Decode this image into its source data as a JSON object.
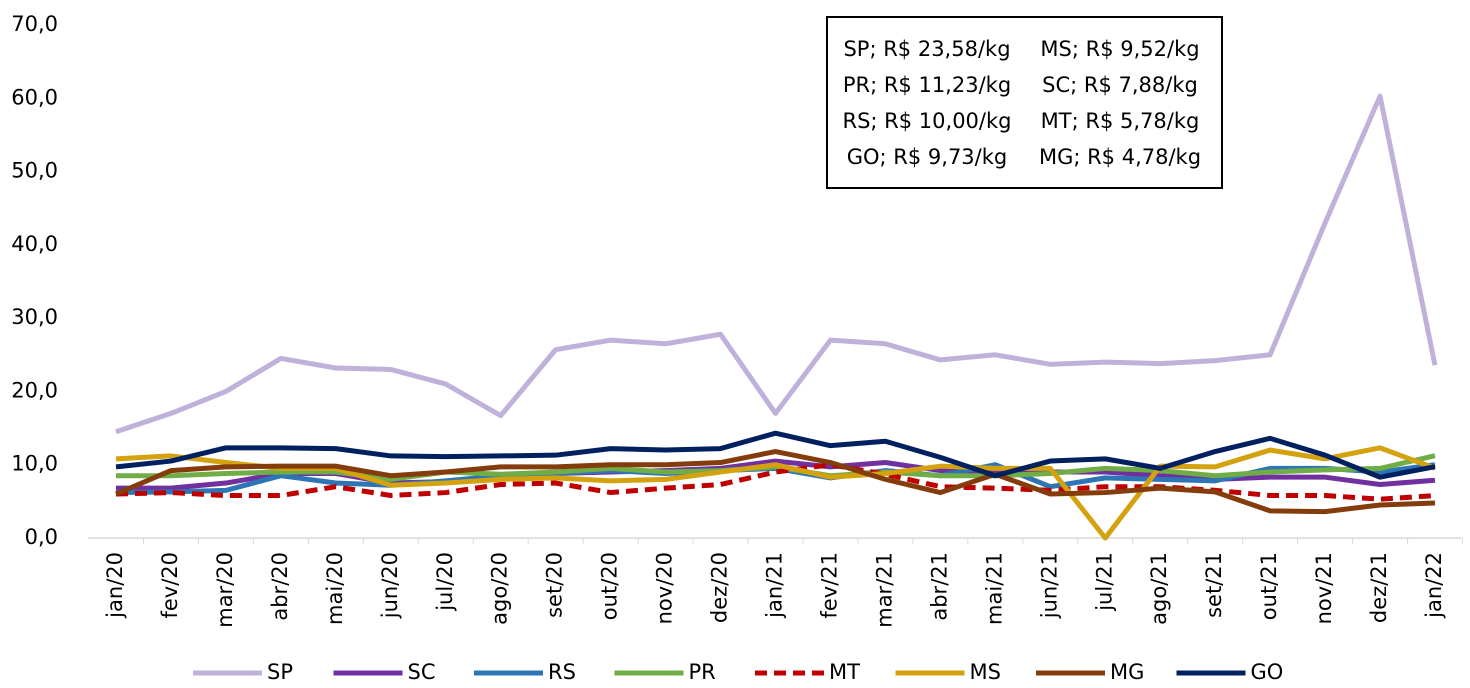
{
  "chart_data": {
    "type": "line",
    "categories": [
      "jan/20",
      "fev/20",
      "mar/20",
      "abr/20",
      "mai/20",
      "jun/20",
      "jul/20",
      "ago/20",
      "set/20",
      "out/20",
      "nov/20",
      "dez/20",
      "jan/21",
      "fev/21",
      "mar/21",
      "abr/21",
      "mai/21",
      "jun/21",
      "jul/21",
      "ago/21",
      "set/21",
      "out/21",
      "nov/21",
      "dez/21",
      "jan/22"
    ],
    "series": [
      {
        "name": "SP",
        "color": "#bfb1d9",
        "values": [
          14.5,
          17,
          20,
          24.5,
          23.2,
          23,
          21,
          16.7,
          25.7,
          27,
          26.5,
          27.8,
          17,
          27,
          26.5,
          24.3,
          25,
          23.7,
          24,
          23.8,
          24.2,
          25,
          43,
          60.3,
          23.58
        ]
      },
      {
        "name": "SC",
        "color": "#7030a0",
        "values": [
          6.8,
          6.8,
          7.5,
          8.8,
          8.8,
          7.5,
          7.7,
          8.5,
          8.8,
          9,
          9.2,
          9.5,
          10.5,
          9.7,
          10.3,
          9.2,
          9,
          9,
          9,
          8.5,
          8,
          8.3,
          8.3,
          7.3,
          7.88
        ]
      },
      {
        "name": "RS",
        "color": "#2e75b6",
        "values": [
          6.2,
          6.3,
          6.5,
          8.5,
          7.5,
          7.2,
          7.8,
          8.5,
          8.8,
          9.2,
          8.8,
          9.2,
          9.5,
          8.2,
          9.2,
          8.5,
          10,
          7,
          8.2,
          8,
          7.8,
          9.5,
          9.5,
          9,
          10
        ]
      },
      {
        "name": "PR",
        "color": "#70ad47",
        "values": [
          8.5,
          8.5,
          8.8,
          9,
          9,
          8,
          9,
          8.7,
          9,
          9.5,
          9,
          9.2,
          9.7,
          8.5,
          9,
          8.5,
          8.5,
          8.8,
          9.5,
          9.2,
          8.5,
          9,
          9.3,
          9.5,
          11.23
        ]
      },
      {
        "name": "MT",
        "color": "#c00000",
        "dashed": true,
        "values": [
          6,
          6.2,
          5.8,
          5.8,
          7,
          5.8,
          6.2,
          7.3,
          7.5,
          6.2,
          6.8,
          7.3,
          9,
          10,
          8.7,
          7,
          6.8,
          6.5,
          7,
          7,
          6.5,
          5.8,
          5.8,
          5.3,
          5.78
        ]
      },
      {
        "name": "MS",
        "color": "#d4a20f",
        "values": [
          10.8,
          11.2,
          10.3,
          9.5,
          9.5,
          7.2,
          7.5,
          8,
          8.2,
          7.8,
          8,
          9,
          10,
          8.3,
          8.8,
          9.8,
          9.5,
          9.5,
          0,
          9.8,
          9.7,
          12,
          10.8,
          12.3,
          9.52
        ]
      },
      {
        "name": "MG",
        "color": "#843c0c",
        "values": [
          6,
          9.2,
          9.7,
          9.8,
          9.8,
          8.5,
          9,
          9.7,
          9.7,
          10,
          10,
          10.3,
          11.8,
          10.3,
          8,
          6.2,
          8.7,
          6,
          6.2,
          6.8,
          6.3,
          3.7,
          3.6,
          4.5,
          4.78
        ]
      },
      {
        "name": "GO",
        "color": "#002060",
        "values": [
          9.7,
          10.5,
          12.3,
          12.3,
          12.2,
          11.2,
          11.1,
          11.2,
          11.3,
          12.2,
          12,
          12.2,
          14.3,
          12.6,
          13.2,
          11,
          8.5,
          10.5,
          10.8,
          9.5,
          11.8,
          13.6,
          11.3,
          8.3,
          9.73
        ]
      }
    ],
    "ylim": [
      0,
      70
    ],
    "yticks": [
      {
        "value": 0,
        "label": "0,0"
      },
      {
        "value": 10,
        "label": "10,0"
      },
      {
        "value": 20,
        "label": "20,0"
      },
      {
        "value": 30,
        "label": "30,0"
      },
      {
        "value": 40,
        "label": "40,0"
      },
      {
        "value": 50,
        "label": "50,0"
      },
      {
        "value": 60,
        "label": "60,0"
      },
      {
        "value": 70,
        "label": "70,0"
      }
    ],
    "annotations": [
      [
        "SP; R$ 23,58/kg",
        "MS; R$ 9,52/kg"
      ],
      [
        "PR; R$ 11,23/kg",
        "SC; R$ 7,88/kg"
      ],
      [
        "RS; R$ 10,00/kg",
        "MT; R$ 5,78/kg"
      ],
      [
        "GO; R$ 9,73/kg",
        "MG; R$ 4,78/kg"
      ]
    ],
    "legend": "bottom"
  }
}
